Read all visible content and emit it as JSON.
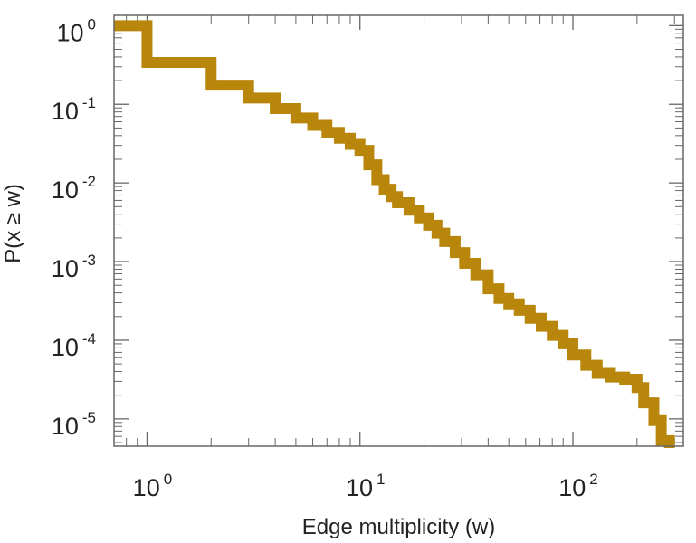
{
  "chart_data": {
    "type": "line",
    "style": "step",
    "xscale": "log",
    "yscale": "log",
    "xlabel": "Edge multiplicity (w)",
    "ylabel": "P(x ≥ w)",
    "xlim": [
      0.7,
      330
    ],
    "ylim": [
      4.5e-06,
      1.35
    ],
    "grid": false,
    "legend": "none",
    "line_color": "#B8860B",
    "x_ticks": [
      {
        "value": 1,
        "base": "10",
        "exp": "0"
      },
      {
        "value": 10,
        "base": "10",
        "exp": "1"
      },
      {
        "value": 100,
        "base": "10",
        "exp": "2"
      }
    ],
    "y_ticks": [
      {
        "value": 1,
        "base": "10",
        "exp": "0"
      },
      {
        "value": 0.1,
        "base": "10",
        "exp": "-1"
      },
      {
        "value": 0.01,
        "base": "10",
        "exp": "-2"
      },
      {
        "value": 0.001,
        "base": "10",
        "exp": "-3"
      },
      {
        "value": 0.0001,
        "base": "10",
        "exp": "-4"
      },
      {
        "value": 1e-05,
        "base": "10",
        "exp": "-5"
      }
    ],
    "series": [
      {
        "x": [
          0.7,
          1,
          2,
          3,
          4,
          5,
          6,
          7,
          8,
          9,
          10,
          11,
          12,
          13,
          14,
          15,
          17,
          19,
          21,
          23,
          25,
          28,
          31,
          35,
          40,
          45,
          50,
          56,
          63,
          71,
          80,
          90,
          100,
          115,
          130,
          150,
          175,
          200,
          215,
          240,
          260
        ],
        "y": [
          1.0,
          0.34,
          0.175,
          0.12,
          0.088,
          0.067,
          0.054,
          0.044,
          0.037,
          0.031,
          0.026,
          0.017,
          0.011,
          0.0083,
          0.0067,
          0.0056,
          0.0045,
          0.0036,
          0.0029,
          0.0023,
          0.0018,
          0.0013,
          0.00095,
          0.00068,
          0.00045,
          0.00034,
          0.00029,
          0.00024,
          0.00019,
          0.00015,
          0.000115,
          9e-05,
          6.5e-05,
          4.8e-05,
          3.8e-05,
          3.4e-05,
          3.2e-05,
          2.5e-05,
          1.6e-05,
          9.5e-06,
          5.3e-06
        ]
      }
    ]
  }
}
